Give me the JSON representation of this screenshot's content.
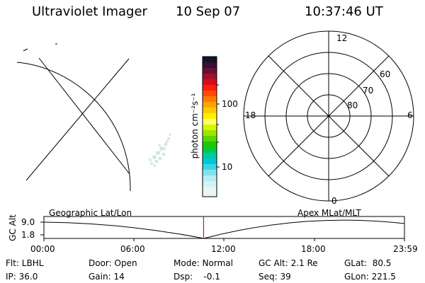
{
  "header": {
    "title": "Ultraviolet Imager",
    "date": "10 Sep 07",
    "time": "10:37:46 UT"
  },
  "colorbar": {
    "unit_label": "photon cm⁻²s⁻¹",
    "tick_100": "100",
    "tick_10": "10"
  },
  "polar": {
    "mlt_top": "12",
    "mlt_left": "18",
    "mlt_right": "6",
    "mlt_bottom": "0",
    "lat_60": "60",
    "lat_70": "70",
    "lat_80": "80"
  },
  "timeline": {
    "left_title": "Geographic Lat/Lon",
    "right_title": "Apex MLat/MLT",
    "y_axis_label": "GC Alt",
    "y_top": "9.0",
    "y_bottom": "1.8",
    "ticks": [
      "00:00",
      "06:00",
      "12:00",
      "18:00",
      "23:59"
    ],
    "marker_time_fraction": 0.4429,
    "marker_color": "#ff0000"
  },
  "info": {
    "flt": "Flt: LBHL",
    "ip": "IP: 36.0",
    "door": "Door: Open",
    "gain": "Gain: 14",
    "mode": "Mode: Normal",
    "dsp": "Dsp:    -0.1",
    "gc_alt": "GC Alt: 2.1 Re",
    "seq": "Seq: 39",
    "glat": "GLat:  80.5",
    "glon": "GLon: 221.5"
  }
}
